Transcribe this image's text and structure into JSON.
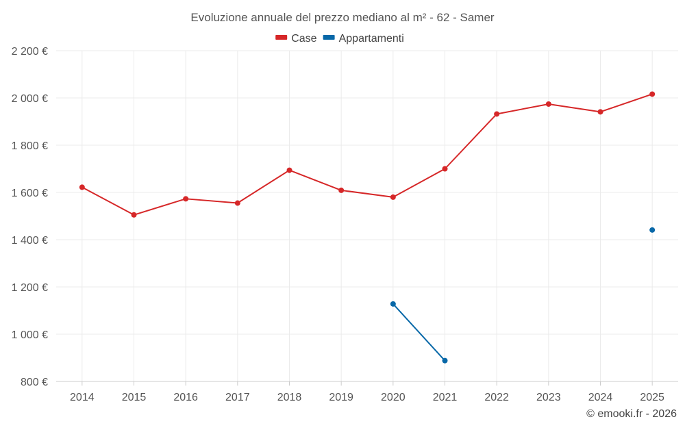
{
  "chart_data": {
    "type": "line",
    "title": "Evoluzione annuale del prezzo mediano al m² - 62 - Samer",
    "categories": [
      "2014",
      "2015",
      "2016",
      "2017",
      "2018",
      "2019",
      "2020",
      "2021",
      "2022",
      "2023",
      "2024",
      "2025"
    ],
    "series": [
      {
        "name": "Case",
        "color": "#d62728",
        "values": [
          1622,
          1505,
          1573,
          1555,
          1694,
          1609,
          1580,
          1700,
          1932,
          1974,
          1941,
          2016
        ]
      },
      {
        "name": "Appartamenti",
        "color": "#0868a8",
        "values": [
          null,
          null,
          null,
          null,
          null,
          null,
          1128,
          888,
          null,
          null,
          null,
          1441
        ]
      }
    ],
    "y_ticks": [
      800,
      1000,
      1200,
      1400,
      1600,
      1800,
      2000,
      2200
    ],
    "y_tick_labels": [
      "800 €",
      "1 000 €",
      "1 200 €",
      "1 400 €",
      "1 600 €",
      "1 800 €",
      "2 000 €",
      "2 200 €"
    ],
    "ylim": [
      800,
      2200
    ],
    "grid": true,
    "legend_position": "top-center"
  },
  "credit": "© emooki.fr - 2026"
}
